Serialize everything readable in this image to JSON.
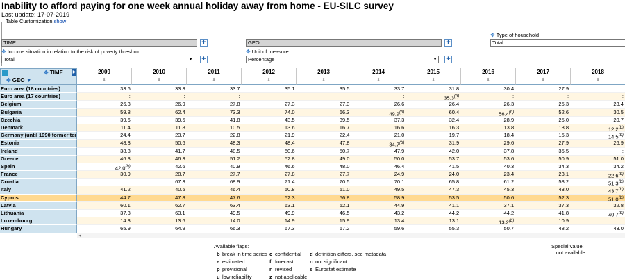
{
  "page": {
    "title": "Inability to afford paying for one week annual holiday away from home - EU-SILC survey",
    "last_update": "Last update: 17-07-2019"
  },
  "customization": {
    "label": "Table Customization",
    "show_link": "show"
  },
  "dimensions": {
    "time_box": "TIME",
    "geo_box": "GEO",
    "type_household_label": "Type of household",
    "type_household_value": "Total",
    "income_label": "Income situation in relation to the risk of poverty threshold",
    "income_value": "Total",
    "unit_label": "Unit of measure",
    "unit_value": "Percentage"
  },
  "table": {
    "time_header": "TIME",
    "geo_header": "GEO",
    "years": [
      "2009",
      "2010",
      "2011",
      "2012",
      "2013",
      "2014",
      "2015",
      "2016",
      "2017",
      "2018"
    ],
    "rows": [
      {
        "geo": "Euro area (18 countries)",
        "v": [
          "33.6",
          "33.3",
          "33.7",
          "35.1",
          "35.5",
          "33.7",
          "31.8",
          "30.4",
          "27.9",
          ":"
        ],
        "f": [
          "",
          "",
          "",
          "",
          "",
          "",
          "",
          "",
          "",
          ""
        ]
      },
      {
        "geo": "Euro area (17 countries)",
        "v": [
          ":",
          ":",
          ":",
          ":",
          ":",
          ":",
          "35.3",
          ":",
          ":",
          ":"
        ],
        "f": [
          "",
          "",
          "",
          "",
          "",
          "",
          "b",
          "",
          "",
          ""
        ]
      },
      {
        "geo": "Belgium",
        "v": [
          "26.3",
          "26.9",
          "27.8",
          "27.3",
          "27.3",
          "26.6",
          "26.4",
          "26.3",
          "25.3",
          "23.4"
        ],
        "f": [
          "",
          "",
          "",
          "",
          "",
          "",
          "",
          "",
          "",
          ""
        ]
      },
      {
        "geo": "Bulgaria",
        "v": [
          "59.8",
          "62.4",
          "73.3",
          "74.0",
          "66.3",
          "49.9",
          "60.4",
          "56.4",
          "52.6",
          "30.5"
        ],
        "f": [
          "",
          "",
          "",
          "",
          "",
          "b",
          "",
          "b",
          "",
          ""
        ]
      },
      {
        "geo": "Czechia",
        "v": [
          "39.6",
          "39.5",
          "41.8",
          "43.5",
          "39.5",
          "37.3",
          "32.4",
          "28.9",
          "25.0",
          "20.7"
        ],
        "f": [
          "",
          "",
          "",
          "",
          "",
          "",
          "",
          "",
          "",
          ""
        ]
      },
      {
        "geo": "Denmark",
        "v": [
          "11.4",
          "11.8",
          "10.5",
          "13.6",
          "16.7",
          "16.6",
          "16.3",
          "13.8",
          "13.8",
          "12.2"
        ],
        "f": [
          "",
          "",
          "",
          "",
          "",
          "",
          "",
          "",
          "",
          "b"
        ]
      },
      {
        "geo": "Germany (until 1990 former territory of the FRG)",
        "v": [
          "24.4",
          "23.7",
          "22.8",
          "21.9",
          "22.4",
          "21.0",
          "19.7",
          "18.4",
          "15.3",
          "14.5"
        ],
        "f": [
          "",
          "",
          "",
          "",
          "",
          "",
          "",
          "",
          "",
          "b"
        ]
      },
      {
        "geo": "Estonia",
        "v": [
          "48.3",
          "50.6",
          "48.3",
          "48.4",
          "47.8",
          "34.7",
          "31.9",
          "29.6",
          "27.9",
          "26.9"
        ],
        "f": [
          "",
          "",
          "",
          "",
          "",
          "b",
          "",
          "",
          "",
          ""
        ]
      },
      {
        "geo": "Ireland",
        "v": [
          "38.8",
          "41.7",
          "48.5",
          "50.6",
          "50.7",
          "47.9",
          "42.0",
          "37.8",
          "35.5",
          ":"
        ],
        "f": [
          "",
          "",
          "",
          "",
          "",
          "",
          "",
          "",
          "",
          ""
        ]
      },
      {
        "geo": "Greece",
        "v": [
          "46.3",
          "46.3",
          "51.2",
          "52.8",
          "49.0",
          "50.0",
          "53.7",
          "53.6",
          "50.9",
          "51.0"
        ],
        "f": [
          "",
          "",
          "",
          "",
          "",
          "",
          "",
          "",
          "",
          ""
        ]
      },
      {
        "geo": "Spain",
        "v": [
          "42.0",
          "42.6",
          "40.9",
          "46.6",
          "48.0",
          "46.4",
          "41.5",
          "40.3",
          "34.3",
          "34.2"
        ],
        "f": [
          "b",
          "",
          "",
          "",
          "",
          "",
          "",
          "",
          "",
          ""
        ]
      },
      {
        "geo": "France",
        "v": [
          "30.9",
          "28.7",
          "27.7",
          "27.8",
          "27.7",
          "24.9",
          "24.0",
          "23.4",
          "23.1",
          "22.6"
        ],
        "f": [
          "",
          "",
          "",
          "",
          "",
          "",
          "",
          "",
          "",
          "b"
        ]
      },
      {
        "geo": "Croatia",
        "v": [
          ":",
          "67.3",
          "68.9",
          "71.4",
          "70.5",
          "70.1",
          "65.8",
          "61.2",
          "58.2",
          "51.3"
        ],
        "f": [
          "",
          "",
          "",
          "",
          "",
          "",
          "",
          "",
          "",
          "b"
        ]
      },
      {
        "geo": "Italy",
        "v": [
          "41.2",
          "40.5",
          "46.4",
          "50.8",
          "51.0",
          "49.5",
          "47.3",
          "45.3",
          "43.0",
          "43.7"
        ],
        "f": [
          "",
          "",
          "",
          "",
          "",
          "",
          "",
          "",
          "",
          "b"
        ]
      },
      {
        "geo": "Cyprus",
        "v": [
          "44.7",
          "47.8",
          "47.6",
          "52.3",
          "56.8",
          "58.9",
          "53.5",
          "50.6",
          "52.3",
          "51.0"
        ],
        "f": [
          "",
          "",
          "",
          "",
          "",
          "",
          "",
          "",
          "",
          "b"
        ]
      },
      {
        "geo": "Latvia",
        "v": [
          "60.1",
          "62.7",
          "63.4",
          "63.1",
          "52.1",
          "44.9",
          "41.1",
          "37.1",
          "37.3",
          "32.8"
        ],
        "f": [
          "",
          "",
          "",
          "",
          "",
          "",
          "",
          "",
          "",
          ""
        ]
      },
      {
        "geo": "Lithuania",
        "v": [
          "37.3",
          "63.1",
          "49.5",
          "49.9",
          "46.5",
          "43.2",
          "44.2",
          "44.2",
          "41.8",
          "40.7"
        ],
        "f": [
          "",
          "",
          "",
          "",
          "",
          "",
          "",
          "",
          "",
          "b"
        ]
      },
      {
        "geo": "Luxembourg",
        "v": [
          "14.3",
          "13.6",
          "14.0",
          "14.9",
          "15.9",
          "13.4",
          "13.1",
          "13.2",
          "10.9",
          ":"
        ],
        "f": [
          "",
          "",
          "",
          "",
          "",
          "",
          "",
          "b",
          "",
          ""
        ]
      },
      {
        "geo": "Hungary",
        "v": [
          "65.9",
          "64.9",
          "66.3",
          "67.3",
          "67.2",
          "59.6",
          "55.3",
          "50.7",
          "48.2",
          "43.0"
        ],
        "f": [
          "",
          "",
          "",
          "",
          "",
          "",
          "",
          "",
          "",
          ""
        ]
      }
    ],
    "highlight_row": 14
  },
  "flags": {
    "title": "Available flags:",
    "items": [
      {
        "k": "b",
        "t": "break in time series"
      },
      {
        "k": "e",
        "t": "estimated"
      },
      {
        "k": "p",
        "t": "provisional"
      },
      {
        "k": "u",
        "t": "low reliability"
      },
      {
        "k": "c",
        "t": "confidential"
      },
      {
        "k": "f",
        "t": "forecast"
      },
      {
        "k": "r",
        "t": "revised"
      },
      {
        "k": "z",
        "t": "not applicable"
      },
      {
        "k": "d",
        "t": "definition differs, see metadata"
      },
      {
        "k": "n",
        "t": "not significant"
      },
      {
        "k": "s",
        "t": "Eurostat estimate"
      }
    ],
    "special_title": "Special value:",
    "special_key": ":",
    "special_text": "not available"
  }
}
